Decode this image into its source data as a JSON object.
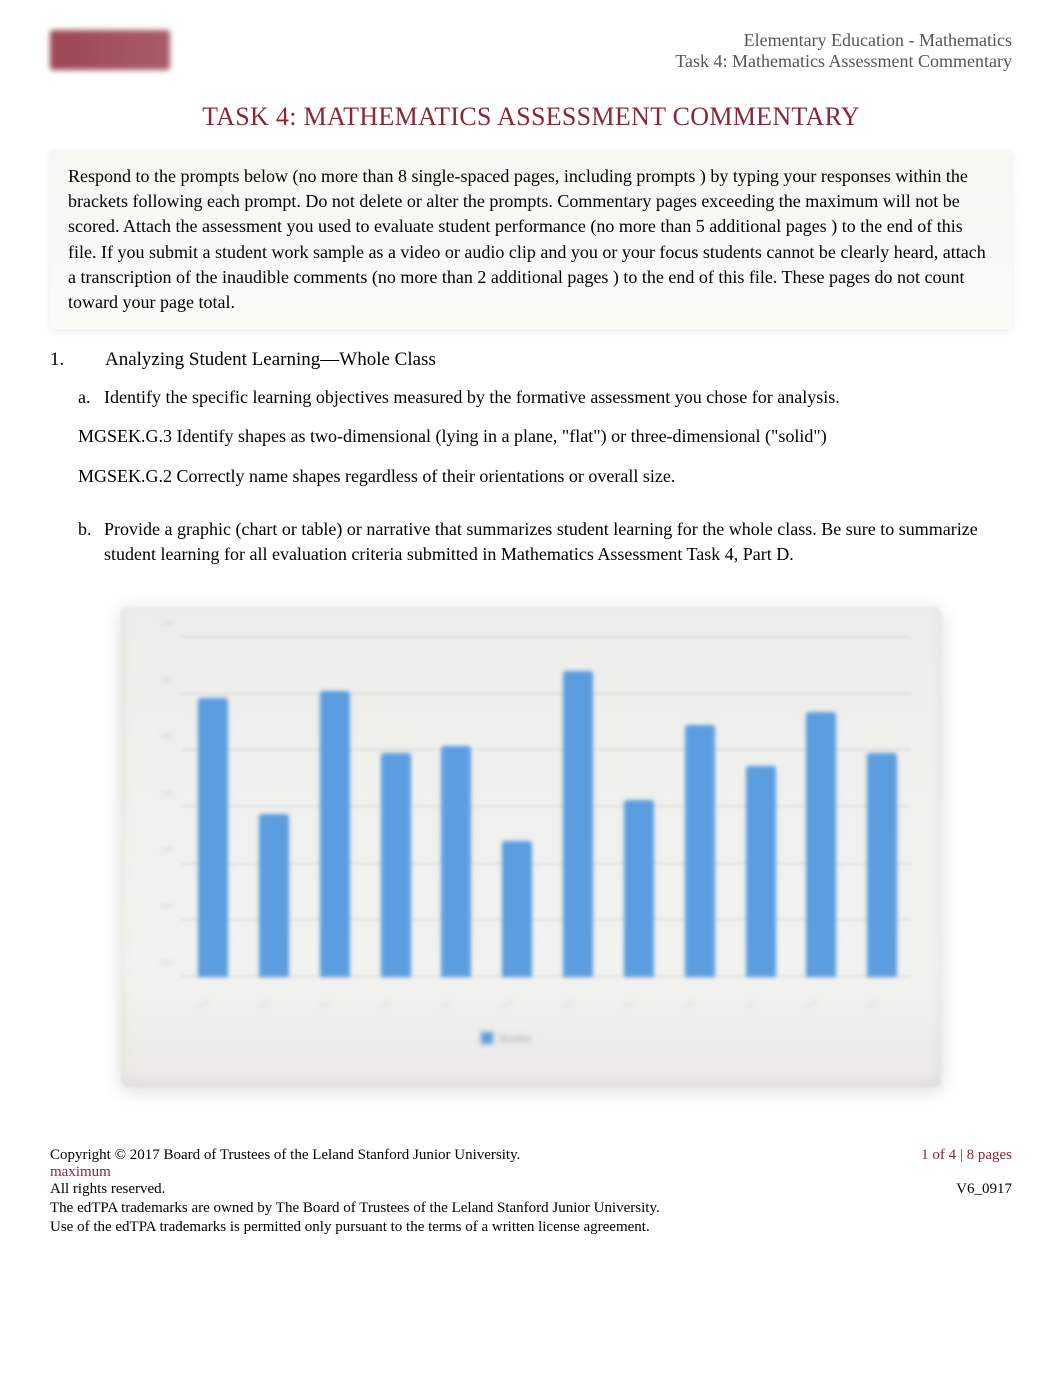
{
  "header": {
    "line1": "Elementary Education - Mathematics",
    "line2": "Task 4: Mathematics Assessment Commentary"
  },
  "title": "TASK 4: MATHEMATICS ASSESSMENT COMMENTARY",
  "instructions": "Respond to the prompts below (no more than 8 single-spaced pages, including prompts    ) by typing your responses within the brackets following each prompt. Do not delete or alter the prompts. Commentary pages exceeding the maximum will not be scored. Attach the assessment you used to evaluate student performance (no more than 5 additional pages  ) to the end of this file. If you submit a student work sample as a video or audio clip and you or your focus students cannot be clearly heard, attach a transcription of the inaudible comments (no more than 2 additional pages  ) to the end of this file. These pages do not count toward your page total.",
  "section1": {
    "number": "1.",
    "heading": "Analyzing Student Learning—Whole Class",
    "item_a": {
      "letter": "a.",
      "text": "Identify the specific learning objectives measured by the formative assessment you chose for analysis."
    },
    "standard_g3": "MGSEK.G.3 Identify shapes as two-dimensional (lying in a plane, \"flat\") or three-dimensional (\"solid\")",
    "standard_g2": "MGSEK.G.2 Correctly name shapes regardless of their orientations or overall size.",
    "item_b": {
      "letter": "b.",
      "text": "Provide a graphic (chart or table) or narrative that summarizes student learning for the whole class. Be sure to summarize student learning for all evaluation criteria submitted in Mathematics Assessment Task 4, Part D."
    }
  },
  "chart": {
    "type": "bar",
    "bar_color": "#5a9de0",
    "background_color": "#f0efec",
    "grid_color": "#d0cfca",
    "ylim": [
      0,
      100
    ],
    "ytick_count": 7,
    "values": [
      82,
      48,
      84,
      66,
      68,
      40,
      90,
      52,
      74,
      62,
      78,
      66
    ],
    "legend_text": "Scores"
  },
  "footer": {
    "copyright": "Copyright © 2017 Board of Trustees of the Leland Stanford Junior University.",
    "pages": "1 of 4 | 8 pages",
    "maximum": "maximum",
    "rights": "All rights reserved.",
    "version": "V6_0917",
    "tm1": "The edTPA trademarks are owned by The Board of Trustees of the Leland Stanford Junior University.",
    "tm2": "Use of the edTPA trademarks is permitted only pursuant to the terms of a written license agreement."
  }
}
